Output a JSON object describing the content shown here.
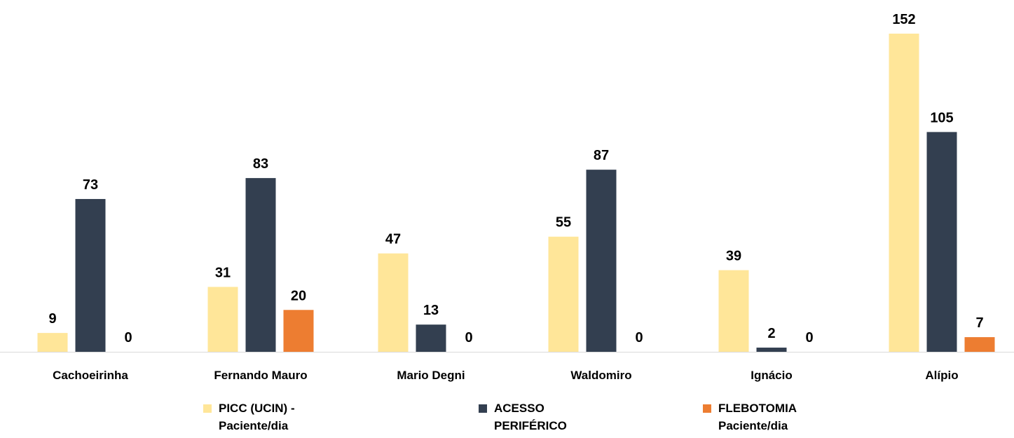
{
  "chart_data": {
    "type": "bar",
    "categories": [
      "Cachoeirinha",
      "Fernando Mauro",
      "Mario Degni",
      "Waldomiro",
      "Ignácio",
      "Alípio"
    ],
    "series": [
      {
        "name": "PICC (UCIN) - Paciente/dia",
        "color": "#FFE699",
        "values": [
          9,
          31,
          47,
          55,
          39,
          152
        ]
      },
      {
        "name": "ACESSO PERIFÉRICO Paciente/dia",
        "color": "#333F50",
        "values": [
          73,
          83,
          13,
          87,
          2,
          105
        ]
      },
      {
        "name": "FLEBOTOMIA Paciente/dia",
        "color": "#ED7D31",
        "values": [
          0,
          20,
          0,
          0,
          0,
          7
        ]
      }
    ],
    "ylim": [
      0,
      152
    ],
    "legend": "bottom"
  }
}
